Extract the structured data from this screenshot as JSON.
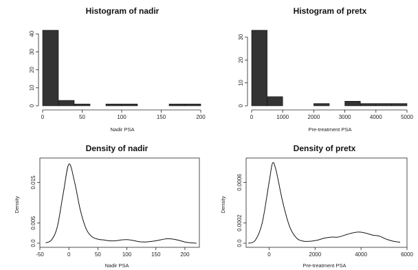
{
  "chart_data": [
    {
      "type": "bar",
      "title": "Histogram of nadir",
      "xlabel": "Nadir PSA",
      "ylabel": "",
      "bins": [
        [
          0,
          20
        ],
        [
          20,
          40
        ],
        [
          40,
          60
        ],
        [
          60,
          80
        ],
        [
          80,
          100
        ],
        [
          100,
          120
        ],
        [
          120,
          140
        ],
        [
          140,
          160
        ],
        [
          160,
          180
        ],
        [
          180,
          200
        ]
      ],
      "values": [
        42,
        3,
        1,
        0,
        1,
        1,
        0,
        0,
        1,
        1
      ],
      "xlim": [
        0,
        200
      ],
      "ylim": [
        0,
        42
      ],
      "xticks": [
        0,
        50,
        100,
        150,
        200
      ],
      "yticks": [
        0,
        10,
        20,
        30,
        40
      ]
    },
    {
      "type": "bar",
      "title": "Histogram of pretx",
      "xlabel": "Pre-treatment PSA",
      "ylabel": "",
      "bins": [
        [
          0,
          500
        ],
        [
          500,
          1000
        ],
        [
          1000,
          1500
        ],
        [
          1500,
          2000
        ],
        [
          2000,
          2500
        ],
        [
          2500,
          3000
        ],
        [
          3000,
          3500
        ],
        [
          3500,
          4000
        ],
        [
          4000,
          4500
        ],
        [
          4500,
          5000
        ]
      ],
      "values": [
        33,
        4,
        0,
        0,
        1,
        0,
        2,
        1,
        1,
        1
      ],
      "xlim": [
        0,
        5000
      ],
      "ylim": [
        0,
        33
      ],
      "xticks": [
        0,
        1000,
        2000,
        3000,
        4000,
        5000
      ],
      "yticks": [
        0,
        10,
        20,
        30
      ]
    },
    {
      "type": "line",
      "title": "Density of nadir",
      "xlabel": "Nadir PSA",
      "ylabel": "Density",
      "x": [
        -40,
        -30,
        -20,
        -10,
        0,
        10,
        20,
        30,
        40,
        50,
        60,
        70,
        80,
        90,
        100,
        110,
        120,
        130,
        140,
        150,
        160,
        170,
        180,
        190,
        200,
        210,
        220
      ],
      "y": [
        0.0001,
        0.0008,
        0.004,
        0.012,
        0.0195,
        0.015,
        0.008,
        0.0035,
        0.0016,
        0.001,
        0.0008,
        0.0006,
        0.0006,
        0.0008,
        0.0009,
        0.0007,
        0.0004,
        0.0003,
        0.0004,
        0.0006,
        0.0009,
        0.0011,
        0.001,
        0.0007,
        0.0003,
        0.0001,
        0.0
      ],
      "xlim": [
        -50,
        225
      ],
      "ylim": [
        0,
        0.02
      ],
      "xticks": [
        -50,
        0,
        50,
        100,
        150,
        200
      ],
      "yticks": [
        0.0,
        0.005,
        0.015
      ],
      "ytick_labels": [
        "0.0",
        "0.005",
        "0.015"
      ]
    },
    {
      "type": "line",
      "title": "Density of pretx",
      "xlabel": "Pre-treatment PSA",
      "ylabel": "Density",
      "x": [
        -900,
        -600,
        -300,
        0,
        150,
        300,
        600,
        900,
        1200,
        1500,
        1800,
        2100,
        2400,
        2700,
        3000,
        3300,
        3600,
        3900,
        4200,
        4500,
        4800,
        5100,
        5400,
        5700
      ],
      "y": [
        0.0,
        3e-05,
        0.0002,
        0.0006,
        0.00079,
        0.00072,
        0.0004,
        0.00016,
        5e-05,
        2e-05,
        2e-05,
        3e-05,
        5e-05,
        6e-05,
        6e-05,
        8e-05,
        0.0001,
        0.00011,
        0.0001,
        8e-05,
        7e-05,
        4e-05,
        2e-05,
        1e-05
      ],
      "xlim": [
        -1000,
        6000
      ],
      "ylim": [
        0,
        0.0008
      ],
      "xticks": [
        0,
        2000,
        4000,
        6000
      ],
      "yticks": [
        0.0,
        0.0002,
        0.0006
      ],
      "ytick_labels": [
        "0.0",
        "0.0002",
        "0.0006"
      ]
    }
  ]
}
